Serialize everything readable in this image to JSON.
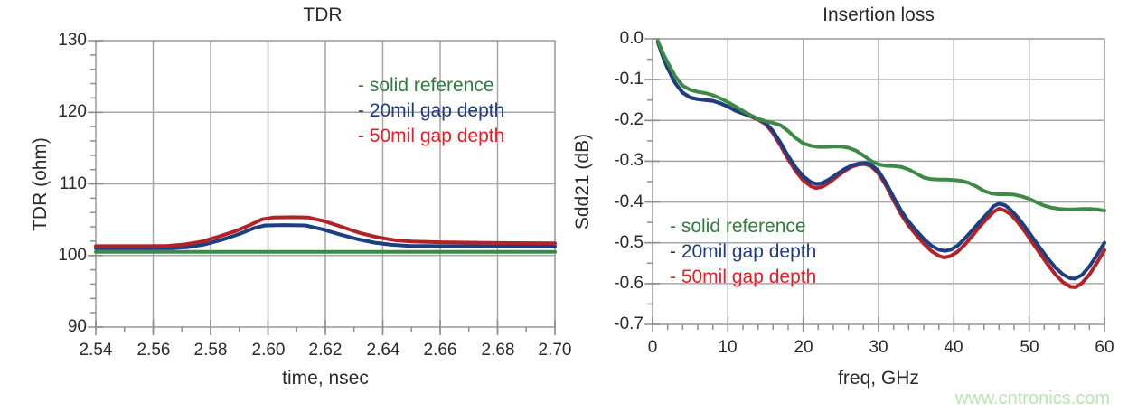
{
  "page": {
    "background": "#ffffff",
    "watermark": {
      "text": "www.cntronics.com",
      "color": "#b9e4b4"
    },
    "plot_style": {
      "grid_color": "#a7a7a7",
      "frame_color": "#a7a7a7",
      "tick_color": "#8d8d8d",
      "label_color": "#2d2829",
      "line_width": 4
    }
  },
  "chart_data": [
    {
      "type": "line",
      "title": "TDR",
      "xlabel": "time, nsec",
      "ylabel": "TDR (ohm)",
      "xlim": [
        2.54,
        2.7
      ],
      "ylim": [
        90,
        130
      ],
      "grid": true,
      "legend_position": "upper right inside plot",
      "xticks": {
        "values": [
          2.54,
          2.56,
          2.58,
          2.6,
          2.62,
          2.64,
          2.66,
          2.68,
          2.7
        ],
        "labels": [
          "2.54",
          "2.56",
          "2.58",
          "2.60",
          "2.62",
          "2.64",
          "2.66",
          "2.68",
          "2.70"
        ]
      },
      "yticks": {
        "values": [
          90,
          100,
          110,
          120,
          130
        ],
        "labels": [
          "90",
          "100",
          "110",
          "120",
          "130"
        ]
      },
      "x_minor_step": 0.01,
      "y_minor_step": 2,
      "legend": [
        {
          "label": "- solid reference",
          "color": "#2e7c3c"
        },
        {
          "label": "- 20mil gap depth",
          "color": "#1f3b86"
        },
        {
          "label": "- 50mil gap depth",
          "color": "#ec1c24"
        }
      ],
      "series": [
        {
          "name": "solid reference",
          "color": "#3c8a46",
          "points": [
            [
              2.54,
              100.5
            ],
            [
              2.7,
              100.5
            ]
          ]
        },
        {
          "name": "20mil gap depth",
          "color": "#1c3e82",
          "points": [
            [
              2.54,
              101.0
            ],
            [
              2.56,
              101.0
            ],
            [
              2.566,
              101.0
            ],
            [
              2.572,
              101.15
            ],
            [
              2.578,
              101.55
            ],
            [
              2.584,
              102.2
            ],
            [
              2.59,
              103.0
            ],
            [
              2.595,
              103.8
            ],
            [
              2.599,
              104.2
            ],
            [
              2.606,
              104.25
            ],
            [
              2.613,
              104.2
            ],
            [
              2.619,
              103.65
            ],
            [
              2.625,
              102.95
            ],
            [
              2.631,
              102.3
            ],
            [
              2.637,
              101.8
            ],
            [
              2.643,
              101.5
            ],
            [
              2.649,
              101.35
            ],
            [
              2.66,
              101.3
            ],
            [
              2.68,
              101.28
            ],
            [
              2.7,
              101.25
            ]
          ]
        },
        {
          "name": "50mil gap depth",
          "color": "#b22226",
          "points": [
            [
              2.54,
              101.3
            ],
            [
              2.558,
              101.3
            ],
            [
              2.565,
              101.35
            ],
            [
              2.571,
              101.55
            ],
            [
              2.577,
              101.95
            ],
            [
              2.583,
              102.65
            ],
            [
              2.589,
              103.45
            ],
            [
              2.594,
              104.3
            ],
            [
              2.598,
              105.05
            ],
            [
              2.602,
              105.3
            ],
            [
              2.609,
              105.35
            ],
            [
              2.614,
              105.3
            ],
            [
              2.62,
              104.75
            ],
            [
              2.626,
              103.95
            ],
            [
              2.632,
              103.15
            ],
            [
              2.638,
              102.55
            ],
            [
              2.644,
              102.15
            ],
            [
              2.65,
              101.95
            ],
            [
              2.66,
              101.85
            ],
            [
              2.68,
              101.75
            ],
            [
              2.7,
              101.7
            ]
          ]
        }
      ]
    },
    {
      "type": "line",
      "title": "Insertion loss",
      "xlabel": "freq, GHz",
      "ylabel": "Sdd21 (dB)",
      "xlim": [
        0,
        60
      ],
      "ylim": [
        -0.7,
        0
      ],
      "grid": true,
      "legend_position": "lower left inside plot",
      "xticks": {
        "values": [
          0,
          10,
          20,
          30,
          40,
          50,
          60
        ],
        "labels": [
          "0",
          "10",
          "20",
          "30",
          "40",
          "50",
          "60"
        ]
      },
      "yticks": {
        "values": [
          0,
          -0.1,
          -0.2,
          -0.3,
          -0.4,
          -0.5,
          -0.6,
          -0.7
        ],
        "labels": [
          "0.0",
          "-0.1",
          "-0.2",
          "-0.3",
          "-0.4",
          "-0.5",
          "-0.6",
          "-0.7"
        ]
      },
      "x_minor_step": 2,
      "y_minor_step": 0.05,
      "legend": [
        {
          "label": "- solid reference",
          "color": "#2e7c3c"
        },
        {
          "label": "- 20mil gap depth",
          "color": "#1f3b86"
        },
        {
          "label": "- 50mil gap depth",
          "color": "#ec1c24"
        }
      ],
      "series": [
        {
          "name": "50mil gap depth",
          "color": "#b22226",
          "points": [
            [
              0.7,
              -0.008
            ],
            [
              1.5,
              -0.05
            ],
            [
              2,
              -0.072
            ],
            [
              3,
              -0.108
            ],
            [
              4,
              -0.132
            ],
            [
              5,
              -0.144
            ],
            [
              6,
              -0.148
            ],
            [
              7,
              -0.15
            ],
            [
              8,
              -0.152
            ],
            [
              9,
              -0.158
            ],
            [
              10,
              -0.166
            ],
            [
              11,
              -0.176
            ],
            [
              12,
              -0.183
            ],
            [
              13,
              -0.19
            ],
            [
              14,
              -0.198
            ],
            [
              15,
              -0.209
            ],
            [
              16,
              -0.231
            ],
            [
              17,
              -0.262
            ],
            [
              18,
              -0.295
            ],
            [
              19,
              -0.324
            ],
            [
              20,
              -0.347
            ],
            [
              21,
              -0.361
            ],
            [
              21.7,
              -0.366
            ],
            [
              22.5,
              -0.363
            ],
            [
              23.4,
              -0.353
            ],
            [
              24.4,
              -0.339
            ],
            [
              25.4,
              -0.325
            ],
            [
              26.4,
              -0.314
            ],
            [
              27.4,
              -0.308
            ],
            [
              28.2,
              -0.307
            ],
            [
              29,
              -0.312
            ],
            [
              30,
              -0.33
            ],
            [
              31,
              -0.36
            ],
            [
              32,
              -0.396
            ],
            [
              33,
              -0.43
            ],
            [
              34,
              -0.458
            ],
            [
              35,
              -0.481
            ],
            [
              36,
              -0.502
            ],
            [
              37,
              -0.52
            ],
            [
              38,
              -0.532
            ],
            [
              38.7,
              -0.536
            ],
            [
              39.5,
              -0.533
            ],
            [
              40.5,
              -0.522
            ],
            [
              41.5,
              -0.504
            ],
            [
              42.5,
              -0.482
            ],
            [
              43.5,
              -0.459
            ],
            [
              44.5,
              -0.439
            ],
            [
              45.3,
              -0.424
            ],
            [
              46,
              -0.416
            ],
            [
              46.8,
              -0.421
            ],
            [
              47.6,
              -0.431
            ],
            [
              48.5,
              -0.45
            ],
            [
              49.5,
              -0.474
            ],
            [
              50.5,
              -0.501
            ],
            [
              51.5,
              -0.528
            ],
            [
              52.5,
              -0.554
            ],
            [
              53.5,
              -0.578
            ],
            [
              54.5,
              -0.597
            ],
            [
              55.5,
              -0.608
            ],
            [
              56.2,
              -0.609
            ],
            [
              57,
              -0.599
            ],
            [
              58,
              -0.578
            ],
            [
              59,
              -0.549
            ],
            [
              60,
              -0.518
            ]
          ]
        },
        {
          "name": "20mil gap depth",
          "color": "#1c3e82",
          "points": [
            [
              0.7,
              -0.008
            ],
            [
              1.5,
              -0.05
            ],
            [
              2,
              -0.072
            ],
            [
              3,
              -0.108
            ],
            [
              4,
              -0.132
            ],
            [
              5,
              -0.144
            ],
            [
              6,
              -0.148
            ],
            [
              7,
              -0.15
            ],
            [
              8,
              -0.152
            ],
            [
              9,
              -0.158
            ],
            [
              10,
              -0.166
            ],
            [
              11,
              -0.176
            ],
            [
              12,
              -0.183
            ],
            [
              13,
              -0.189
            ],
            [
              14,
              -0.196
            ],
            [
              15,
              -0.206
            ],
            [
              16,
              -0.226
            ],
            [
              17,
              -0.255
            ],
            [
              18,
              -0.287
            ],
            [
              19,
              -0.315
            ],
            [
              20,
              -0.337
            ],
            [
              21,
              -0.351
            ],
            [
              21.8,
              -0.356
            ],
            [
              22.6,
              -0.353
            ],
            [
              23.5,
              -0.344
            ],
            [
              24.5,
              -0.331
            ],
            [
              25.5,
              -0.319
            ],
            [
              26.5,
              -0.31
            ],
            [
              27.5,
              -0.305
            ],
            [
              28.3,
              -0.304
            ],
            [
              29,
              -0.308
            ],
            [
              30,
              -0.324
            ],
            [
              31,
              -0.353
            ],
            [
              32,
              -0.388
            ],
            [
              33,
              -0.421
            ],
            [
              34,
              -0.448
            ],
            [
              35,
              -0.47
            ],
            [
              36,
              -0.49
            ],
            [
              37,
              -0.507
            ],
            [
              38,
              -0.517
            ],
            [
              38.8,
              -0.52
            ],
            [
              39.6,
              -0.517
            ],
            [
              40.5,
              -0.507
            ],
            [
              41.5,
              -0.489
            ],
            [
              42.5,
              -0.468
            ],
            [
              43.5,
              -0.447
            ],
            [
              44.5,
              -0.427
            ],
            [
              45.3,
              -0.41
            ],
            [
              46,
              -0.404
            ],
            [
              46.8,
              -0.408
            ],
            [
              47.6,
              -0.42
            ],
            [
              48.5,
              -0.438
            ],
            [
              49.5,
              -0.462
            ],
            [
              50.5,
              -0.488
            ],
            [
              51.5,
              -0.514
            ],
            [
              52.5,
              -0.539
            ],
            [
              53.5,
              -0.561
            ],
            [
              54.5,
              -0.578
            ],
            [
              55.4,
              -0.587
            ],
            [
              56.1,
              -0.588
            ],
            [
              57,
              -0.579
            ],
            [
              58,
              -0.558
            ],
            [
              59,
              -0.53
            ],
            [
              60,
              -0.5
            ]
          ]
        },
        {
          "name": "solid reference",
          "color": "#3c8a46",
          "points": [
            [
              0.7,
              -0.005
            ],
            [
              1.5,
              -0.04
            ],
            [
              2,
              -0.058
            ],
            [
              3,
              -0.092
            ],
            [
              4,
              -0.115
            ],
            [
              5,
              -0.125
            ],
            [
              6,
              -0.13
            ],
            [
              7,
              -0.133
            ],
            [
              8,
              -0.138
            ],
            [
              9,
              -0.146
            ],
            [
              10,
              -0.155
            ],
            [
              11,
              -0.166
            ],
            [
              12,
              -0.177
            ],
            [
              13,
              -0.187
            ],
            [
              14,
              -0.196
            ],
            [
              15,
              -0.202
            ],
            [
              16,
              -0.206
            ],
            [
              17,
              -0.212
            ],
            [
              18,
              -0.226
            ],
            [
              19,
              -0.243
            ],
            [
              20,
              -0.256
            ],
            [
              21,
              -0.262
            ],
            [
              22,
              -0.265
            ],
            [
              23,
              -0.265
            ],
            [
              24,
              -0.264
            ],
            [
              25,
              -0.264
            ],
            [
              26,
              -0.267
            ],
            [
              27,
              -0.274
            ],
            [
              28,
              -0.286
            ],
            [
              29,
              -0.299
            ],
            [
              30,
              -0.308
            ],
            [
              31,
              -0.311
            ],
            [
              32,
              -0.312
            ],
            [
              33,
              -0.314
            ],
            [
              34,
              -0.32
            ],
            [
              35,
              -0.33
            ],
            [
              36,
              -0.34
            ],
            [
              37,
              -0.344
            ],
            [
              38,
              -0.345
            ],
            [
              39,
              -0.345
            ],
            [
              40,
              -0.346
            ],
            [
              41,
              -0.348
            ],
            [
              42,
              -0.353
            ],
            [
              43,
              -0.362
            ],
            [
              44,
              -0.373
            ],
            [
              45,
              -0.379
            ],
            [
              46,
              -0.381
            ],
            [
              47,
              -0.381
            ],
            [
              48,
              -0.382
            ],
            [
              49,
              -0.386
            ],
            [
              50,
              -0.392
            ],
            [
              51,
              -0.401
            ],
            [
              52,
              -0.409
            ],
            [
              53,
              -0.414
            ],
            [
              54,
              -0.417
            ],
            [
              55,
              -0.418
            ],
            [
              56,
              -0.418
            ],
            [
              57,
              -0.417
            ],
            [
              58,
              -0.417
            ],
            [
              59,
              -0.418
            ],
            [
              60,
              -0.421
            ]
          ]
        }
      ]
    }
  ]
}
